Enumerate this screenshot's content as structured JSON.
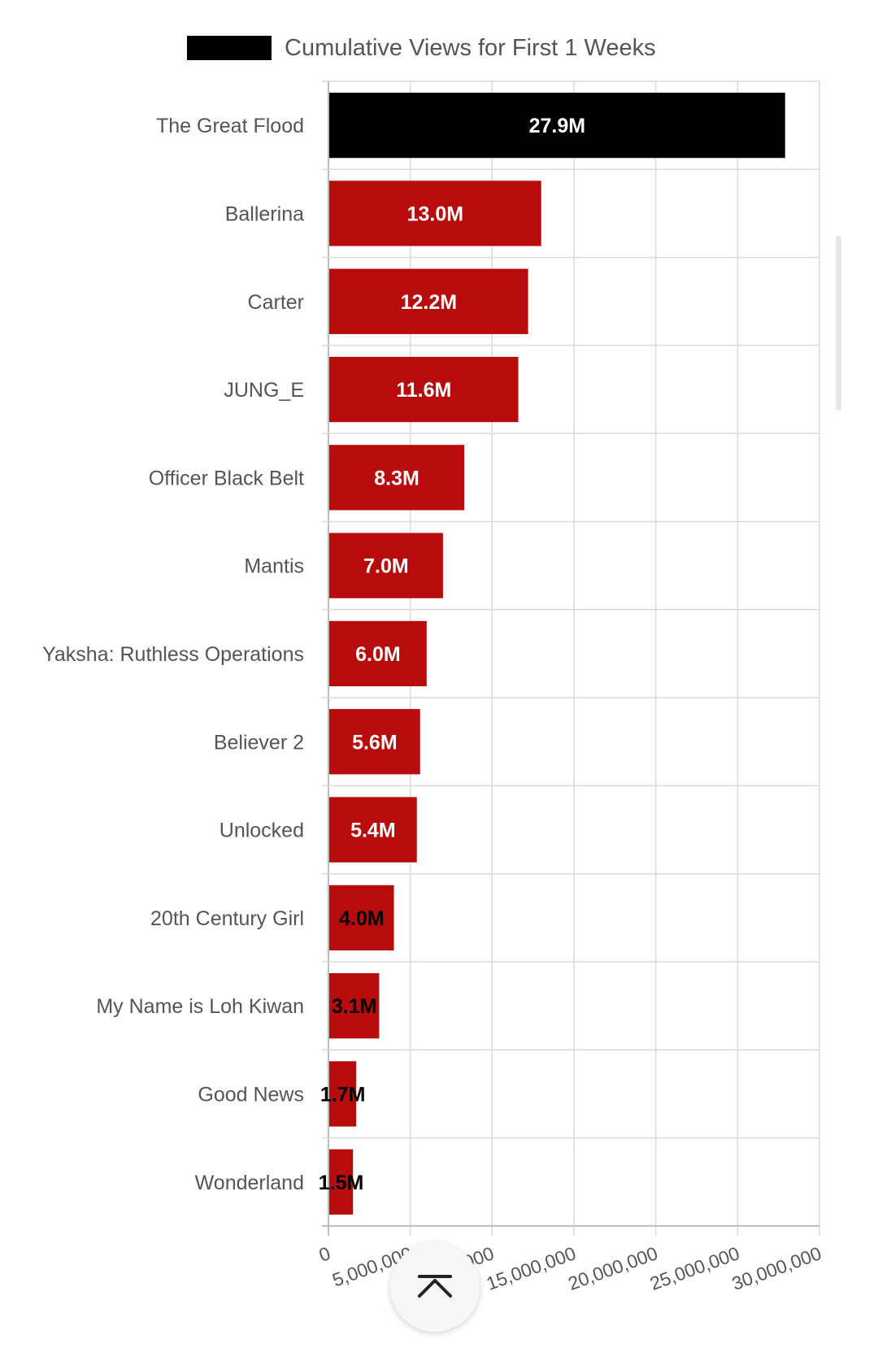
{
  "chart_data": {
    "type": "bar",
    "orientation": "horizontal",
    "legend": {
      "position": "top",
      "entries": [
        {
          "label": "Cumulative Views for First 1 Weeks",
          "color": "#000000"
        }
      ]
    },
    "categories": [
      "The Great Flood",
      "Ballerina",
      "Carter",
      "JUNG_E",
      "Officer Black Belt",
      "Mantis",
      "Yaksha: Ruthless Operations",
      "Believer 2",
      "Unlocked",
      "20th Century Girl",
      "My Name is Loh Kiwan",
      "Good News",
      "Wonderland"
    ],
    "series": [
      {
        "name": "Cumulative Views for First 1 Weeks",
        "values": [
          27900000,
          13000000,
          12200000,
          11600000,
          8300000,
          7000000,
          6000000,
          5600000,
          5400000,
          4000000,
          3100000,
          1700000,
          1500000
        ]
      }
    ],
    "data_labels": [
      "27.9M",
      "13.0M",
      "12.2M",
      "11.6M",
      "8.3M",
      "7.0M",
      "6.0M",
      "5.6M",
      "5.4M",
      "4.0M",
      "3.1M",
      "1.7M",
      "1.5M"
    ],
    "bar_colors": [
      "#000000",
      "#b80b0b",
      "#b80b0b",
      "#b80b0b",
      "#b80b0b",
      "#b80b0b",
      "#b80b0b",
      "#b80b0b",
      "#b80b0b",
      "#b80b0b",
      "#b80b0b",
      "#b80b0b",
      "#b80b0b"
    ],
    "label_colors": [
      "#ffffff",
      "#ffffff",
      "#ffffff",
      "#ffffff",
      "#ffffff",
      "#ffffff",
      "#ffffff",
      "#ffffff",
      "#ffffff",
      "#000000",
      "#000000",
      "#000000",
      "#000000"
    ],
    "xlim": [
      0,
      30000000
    ],
    "x_ticks": [
      0,
      5000000,
      10000000,
      15000000,
      20000000,
      25000000,
      30000000
    ],
    "x_tick_labels": [
      "0",
      "5,000,000",
      "10,000,000",
      "15,000,000",
      "20,000,000",
      "25,000,000",
      "30,000,000"
    ],
    "grid": true
  },
  "scroll_top_button": {
    "icon": "chevron-up-icon"
  }
}
